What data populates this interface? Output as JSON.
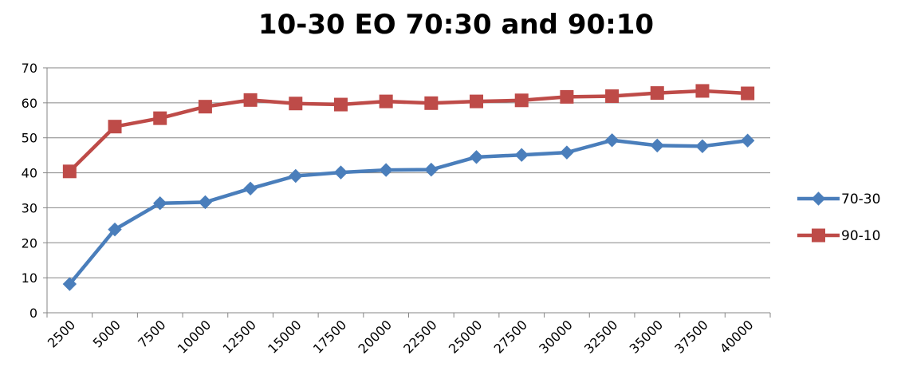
{
  "chart_data": {
    "type": "line",
    "title": "10-30 EO 70:30 and 90:10",
    "xlabel": "",
    "ylabel": "",
    "categories": [
      "2500",
      "5000",
      "7500",
      "10000",
      "12500",
      "15000",
      "17500",
      "20000",
      "22500",
      "25000",
      "27500",
      "30000",
      "32500",
      "35000",
      "37500",
      "40000"
    ],
    "ylim": [
      0,
      70
    ],
    "yticks": [
      0,
      10,
      20,
      30,
      40,
      50,
      60,
      70
    ],
    "grid": "horizontal",
    "legend_position": "right",
    "series": [
      {
        "name": "70-30",
        "color": "#4a7ebb",
        "marker": "diamond",
        "values": [
          8.2,
          23.8,
          31.3,
          31.6,
          35.5,
          39.1,
          40.1,
          40.8,
          40.9,
          44.5,
          45.1,
          45.8,
          49.3,
          47.8,
          47.6,
          49.2
        ]
      },
      {
        "name": "90-10",
        "color": "#be4b48",
        "marker": "square",
        "values": [
          40.4,
          53.2,
          55.6,
          58.9,
          60.8,
          59.8,
          59.5,
          60.4,
          59.9,
          60.4,
          60.7,
          61.7,
          61.9,
          62.8,
          63.4,
          62.7
        ]
      }
    ]
  }
}
